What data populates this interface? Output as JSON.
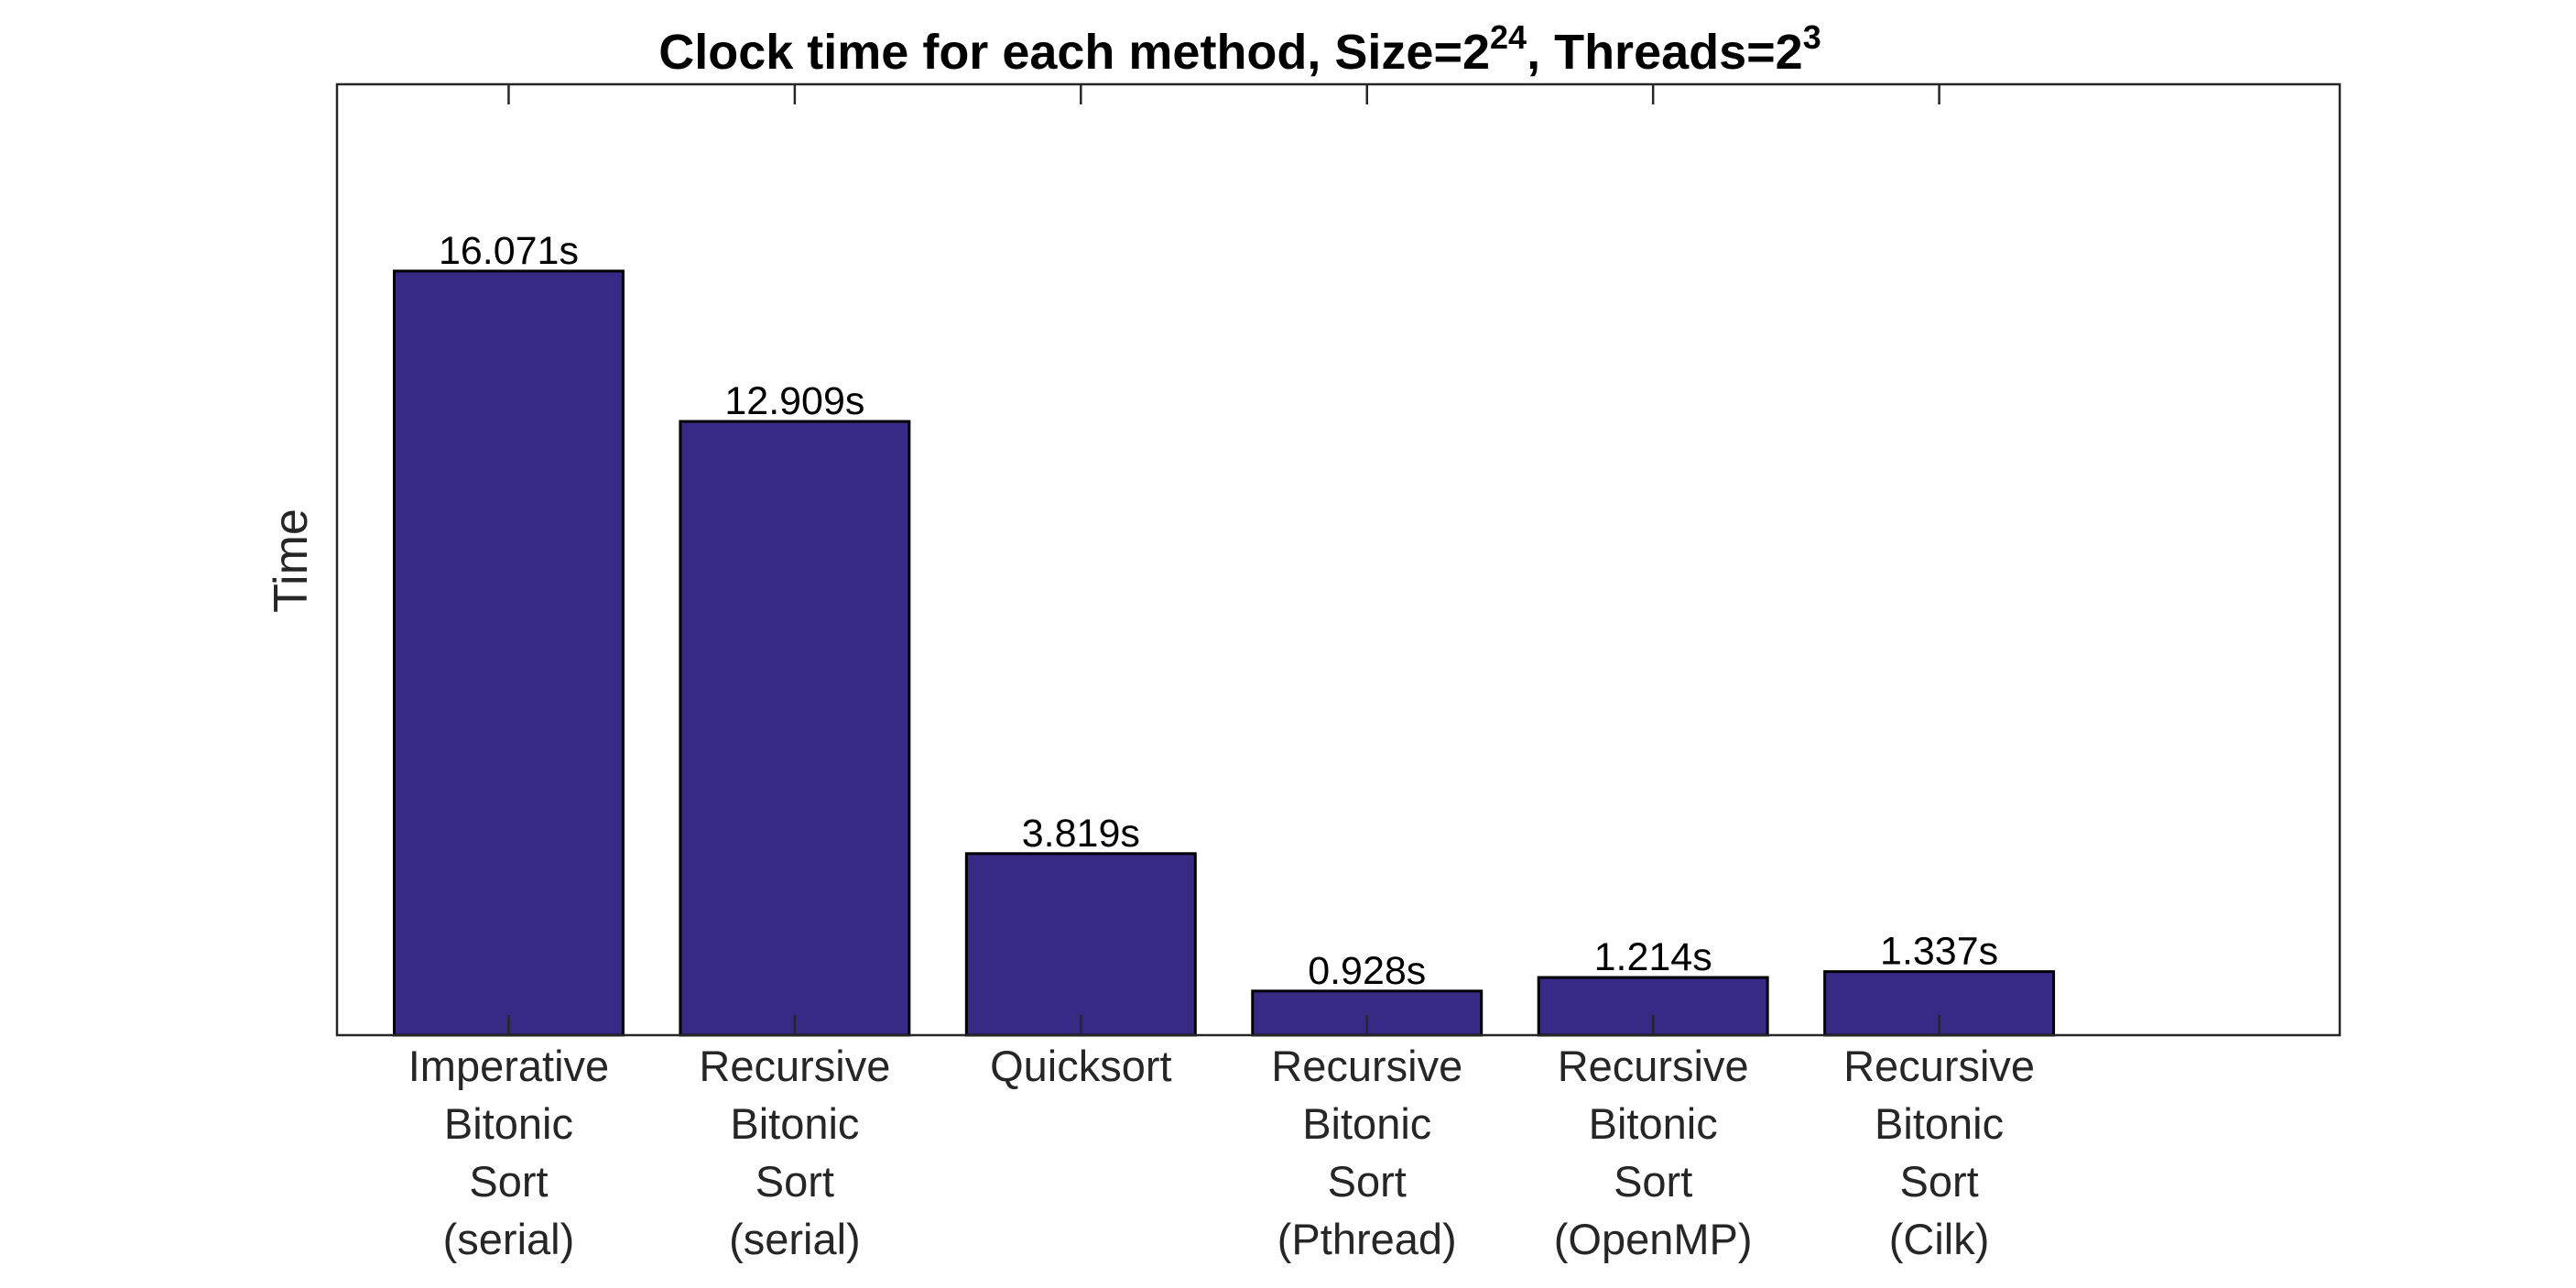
{
  "chart_data": {
    "type": "bar",
    "title_parts": {
      "lead": "Clock time for each method, Size=2",
      "size_exp": "24",
      "mid": ", Threads=2",
      "threads_exp": "3"
    },
    "xlabel": "",
    "ylabel": "Time",
    "categories": [
      [
        "Imperative",
        "Bitonic",
        "Sort",
        "(serial)"
      ],
      [
        "Recursive",
        "Bitonic",
        "Sort",
        "(serial)"
      ],
      [
        "Quicksort"
      ],
      [
        "Recursive",
        "Bitonic",
        "Sort",
        "(Pthread)"
      ],
      [
        "Recursive",
        "Bitonic",
        "Sort",
        "(OpenMP)"
      ],
      [
        "Recursive",
        "Bitonic",
        "Sort",
        "(Cilk)"
      ]
    ],
    "values": [
      16.071,
      12.909,
      3.819,
      0.928,
      1.214,
      1.337
    ],
    "value_labels": [
      "16.071s",
      "12.909s",
      "3.819s",
      "0.928s",
      "1.214s",
      "1.337s"
    ],
    "ylim": [
      0,
      20
    ],
    "bar_color": "#362a84",
    "grid": false,
    "yticks_shown": false
  }
}
